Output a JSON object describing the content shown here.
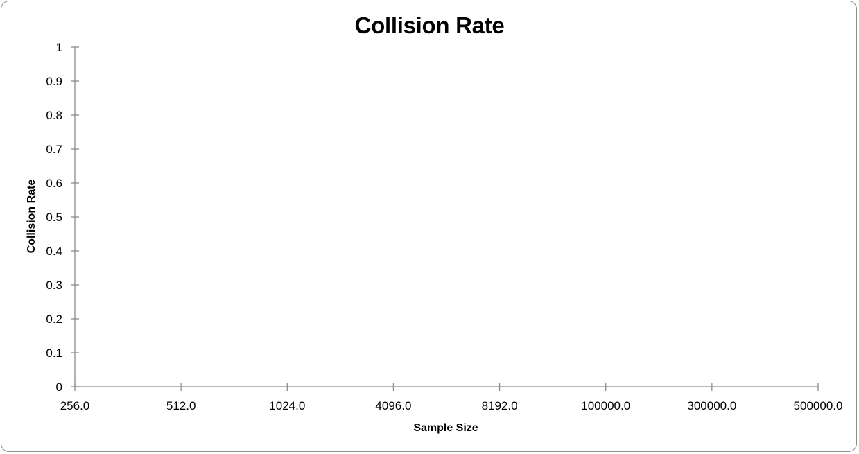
{
  "chart_data": {
    "type": "line",
    "title": "Collision Rate",
    "xlabel": "Sample Size",
    "ylabel": "Collision Rate",
    "categories": [
      "256.0",
      "512.0",
      "1024.0",
      "4096.0",
      "8192.0",
      "100000.0",
      "300000.0",
      "500000.0"
    ],
    "series": [],
    "ylim": [
      0,
      1
    ],
    "yticks": [
      "0",
      "0.1",
      "0.2",
      "0.3",
      "0.4",
      "0.5",
      "0.6",
      "0.7",
      "0.8",
      "0.9",
      "1"
    ],
    "grid": false,
    "legend": "none",
    "colors": {
      "axis": "#8c8c8c",
      "text": "#000000",
      "frame": "#8c8c8c"
    }
  }
}
